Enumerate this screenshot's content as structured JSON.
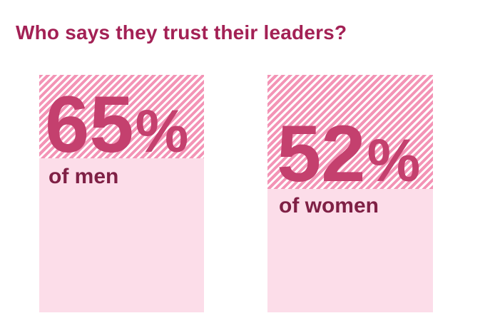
{
  "title": "Who says they trust their leaders?",
  "chart_data": {
    "type": "bar",
    "title": "Who says they trust their leaders?",
    "categories": [
      "men",
      "women"
    ],
    "values": [
      65,
      52
    ],
    "unit": "%",
    "ylim": [
      0,
      100
    ],
    "legend": "none",
    "grid": false,
    "style_note": "Each category is a 100%-tall rectangle; the solid light-pink bottom portion equals the value, the diagonally hatched top portion equals the remainder (35% and 48%)"
  },
  "cards": [
    {
      "value": 65,
      "value_text": "65",
      "percent_sign": "%",
      "label": "of men"
    },
    {
      "value": 52,
      "value_text": "52",
      "percent_sign": "%",
      "label": "of women"
    }
  ],
  "colors": {
    "background": "#ffffff",
    "title_text": "#a32155",
    "value_text": "#c4406e",
    "label_text": "#7f2045",
    "hatch_stripe": "#f394b6",
    "solid_fill": "#fcdde9"
  }
}
